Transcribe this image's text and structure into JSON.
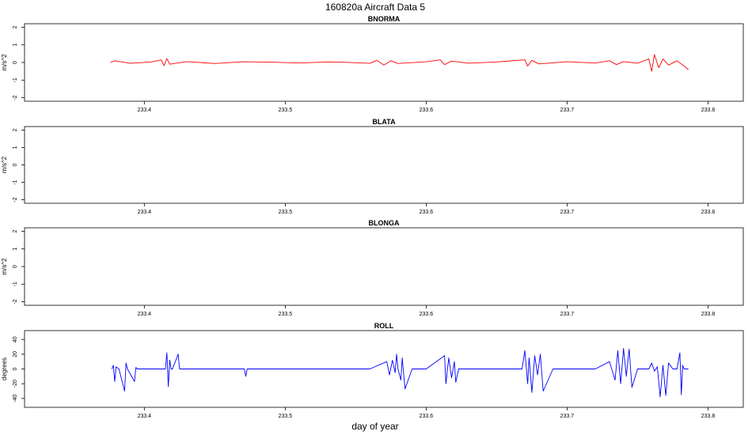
{
  "figure": {
    "title": "160820a   Aircraft Data 5",
    "xlabel": "day of year"
  },
  "chart_data": [
    {
      "type": "line",
      "title": "BNORMA",
      "ylabel": "m/s^2",
      "color": "#ff0000",
      "xlim": [
        233.315,
        233.825
      ],
      "ylim": [
        -2.2,
        2.2
      ],
      "xticks": [
        233.4,
        233.5,
        233.6,
        233.7,
        233.8
      ],
      "xtick_labels": [
        "233.4",
        "233.5",
        "233.6",
        "233.7",
        "233.8"
      ],
      "yticks": [
        -2,
        -1,
        0,
        1,
        2
      ],
      "ytick_labels": [
        "-2",
        "-1",
        "0",
        "1",
        "2"
      ],
      "series": [
        {
          "x": [
            233.376,
            233.379,
            233.39,
            233.405,
            233.412,
            233.414,
            233.416,
            233.418,
            233.43,
            233.45,
            233.47,
            233.49,
            233.51,
            233.53,
            233.54,
            233.56,
            233.565,
            233.57,
            233.575,
            233.58,
            233.6,
            233.61,
            233.613,
            233.618,
            233.63,
            233.65,
            233.67,
            233.672,
            233.675,
            233.68,
            233.7,
            233.72,
            233.73,
            233.735,
            233.74,
            233.75,
            233.758,
            233.76,
            233.762,
            233.765,
            233.768,
            233.772,
            233.778,
            233.783,
            233.786
          ],
          "y": [
            0,
            0.1,
            -0.05,
            0.03,
            0.15,
            -0.18,
            0.22,
            -0.1,
            0.05,
            -0.06,
            0.04,
            0.02,
            -0.03,
            0.03,
            0.02,
            -0.05,
            0.12,
            -0.15,
            0.1,
            -0.06,
            0.04,
            0.15,
            -0.12,
            0.08,
            -0.04,
            0.03,
            0.15,
            -0.2,
            0.12,
            -0.08,
            0.04,
            -0.03,
            0.1,
            -0.12,
            0.05,
            -0.04,
            0.2,
            -0.5,
            0.45,
            -0.3,
            0.2,
            -0.15,
            0.1,
            -0.2,
            -0.4
          ]
        }
      ]
    },
    {
      "type": "line",
      "title": "BLATA",
      "ylabel": "m/s^2",
      "color": "#ff0000",
      "xlim": [
        233.315,
        233.825
      ],
      "ylim": [
        -2.2,
        2.2
      ],
      "xticks": [
        233.4,
        233.5,
        233.6,
        233.7,
        233.8
      ],
      "xtick_labels": [
        "233.4",
        "233.5",
        "233.6",
        "233.7",
        "233.8"
      ],
      "yticks": [
        -2,
        -1,
        0,
        1,
        2
      ],
      "ytick_labels": [
        "-2",
        "-1",
        "0",
        "1",
        "2"
      ],
      "series": []
    },
    {
      "type": "line",
      "title": "BLONGA",
      "ylabel": "m/s^2",
      "color": "#ff0000",
      "xlim": [
        233.315,
        233.825
      ],
      "ylim": [
        -2.2,
        2.2
      ],
      "xticks": [
        233.4,
        233.5,
        233.6,
        233.7,
        233.8
      ],
      "xtick_labels": [
        "233.4",
        "233.5",
        "233.6",
        "233.7",
        "233.8"
      ],
      "yticks": [
        -2,
        -1,
        0,
        1,
        2
      ],
      "ytick_labels": [
        "-2",
        "-1",
        "0",
        "1",
        "2"
      ],
      "series": []
    },
    {
      "type": "line",
      "title": "ROLL",
      "ylabel": "degrees",
      "color": "#0000ff",
      "xlim": [
        233.315,
        233.825
      ],
      "ylim": [
        -52,
        52
      ],
      "xticks": [
        233.4,
        233.5,
        233.6,
        233.7,
        233.8
      ],
      "xtick_labels": [
        "233.4",
        "233.5",
        "233.6",
        "233.7",
        "233.8"
      ],
      "yticks": [
        -40,
        -20,
        0,
        20,
        40
      ],
      "ytick_labels": [
        "-40",
        "-20",
        "0",
        "20",
        "40"
      ],
      "series": [
        {
          "x": [
            233.377,
            233.378,
            233.379,
            233.38,
            233.382,
            233.386,
            233.387,
            233.388,
            233.393,
            233.394,
            233.395,
            233.4,
            233.41,
            233.415,
            233.416,
            233.417,
            233.418,
            233.419,
            233.42,
            233.424,
            233.425,
            233.426,
            233.44,
            233.46,
            233.471,
            233.472,
            233.473,
            233.48,
            233.5,
            233.52,
            233.54,
            233.56,
            233.572,
            233.574,
            233.576,
            233.578,
            233.579,
            233.58,
            233.582,
            233.583,
            233.585,
            233.59,
            233.6,
            233.613,
            233.614,
            233.616,
            233.618,
            233.62,
            233.621,
            233.623,
            233.63,
            233.65,
            233.668,
            233.67,
            233.672,
            233.673,
            233.675,
            233.677,
            233.679,
            233.681,
            233.683,
            233.69,
            233.7,
            233.72,
            233.73,
            233.734,
            233.736,
            233.738,
            233.74,
            233.742,
            233.744,
            233.746,
            233.75,
            233.758,
            233.76,
            233.762,
            233.764,
            233.766,
            233.768,
            233.77,
            233.772,
            233.775,
            233.778,
            233.78,
            233.781,
            233.782,
            233.783,
            233.785,
            233.786
          ],
          "y": [
            0,
            5,
            -17,
            3,
            0,
            -30,
            8,
            0,
            -17,
            2,
            0,
            0,
            0,
            0,
            22,
            -24,
            12,
            0,
            0,
            20,
            0,
            0,
            0,
            0,
            0,
            -10,
            0,
            0,
            0,
            0,
            0,
            0,
            10,
            -8,
            12,
            -5,
            20,
            0,
            -15,
            15,
            -27,
            0,
            0,
            18,
            -20,
            15,
            -12,
            10,
            -18,
            0,
            0,
            0,
            0,
            25,
            -20,
            15,
            -32,
            18,
            -8,
            20,
            -30,
            0,
            0,
            0,
            10,
            -15,
            25,
            -20,
            28,
            -10,
            27,
            -25,
            0,
            0,
            8,
            -3,
            3,
            -38,
            5,
            -36,
            8,
            0,
            0,
            22,
            -35,
            5,
            0,
            0,
            0
          ]
        }
      ]
    }
  ]
}
